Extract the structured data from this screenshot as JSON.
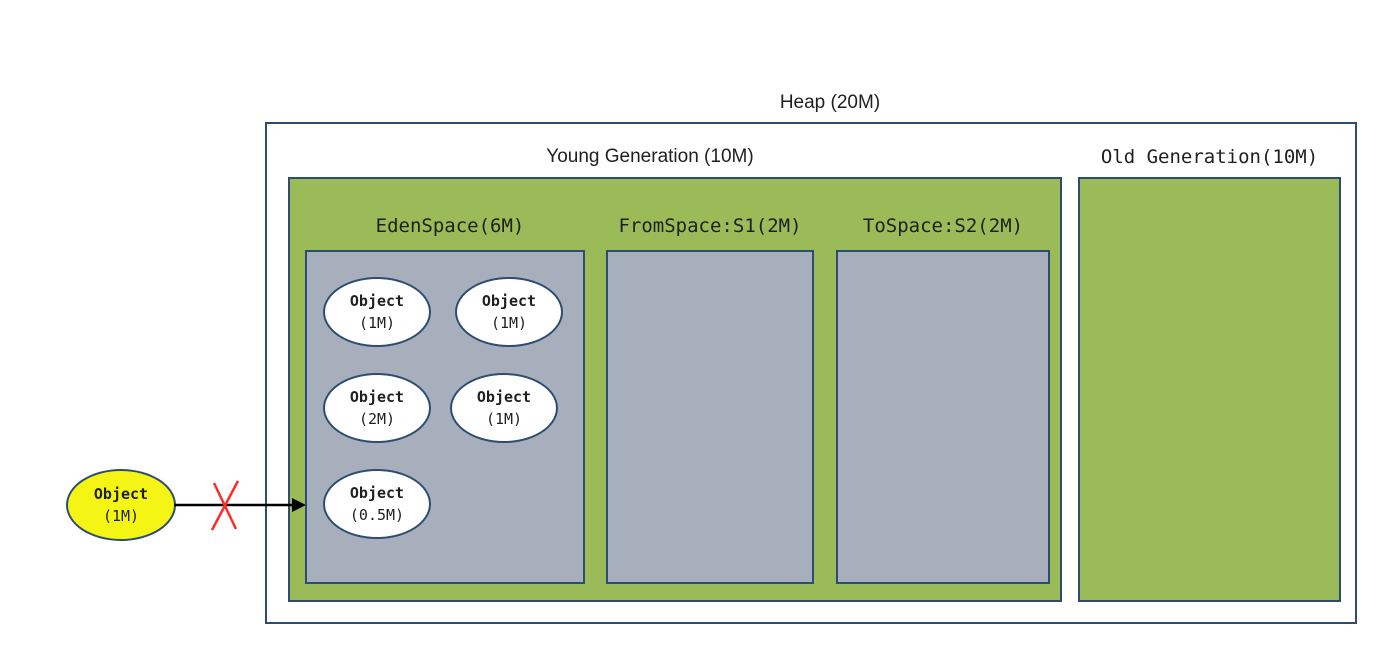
{
  "heap": {
    "label": "Heap (20M)"
  },
  "young_generation": {
    "label": "Young Generation (10M)"
  },
  "old_generation": {
    "label": "Old Generation(10M)"
  },
  "spaces": {
    "eden": {
      "label": "EdenSpace(6M)"
    },
    "from": {
      "label": "FromSpace:S1(2M)"
    },
    "to": {
      "label": "ToSpace:S2(2M)"
    }
  },
  "eden_objects": [
    {
      "name": "Object",
      "size": "(1M)"
    },
    {
      "name": "Object",
      "size": "(1M)"
    },
    {
      "name": "Object",
      "size": "(2M)"
    },
    {
      "name": "Object",
      "size": "(1M)"
    },
    {
      "name": "Object",
      "size": "(0.5M)"
    }
  ],
  "incoming_object": {
    "name": "Object",
    "size": "(1M)"
  },
  "colors": {
    "generation_fill": "#9bbb59",
    "space_fill": "#a7afbd",
    "border": "#2e4c72",
    "incoming_object_fill": "#f5f515",
    "blocked_mark": "#ff2a2a"
  },
  "icons": {
    "blocked_mark": "blocked-x-icon",
    "arrow": "arrow-right-icon"
  }
}
